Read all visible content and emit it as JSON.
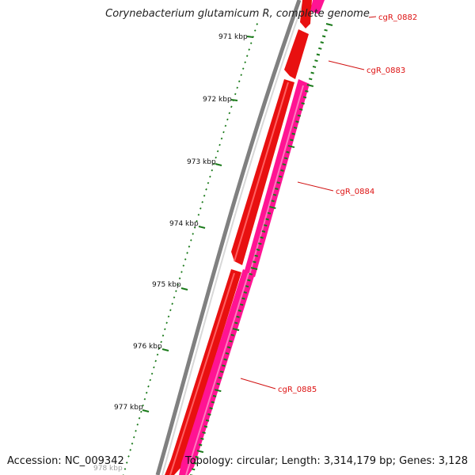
{
  "title": "Corynebacterium glutamicum R, complete genome",
  "accession": "Accession: NC_009342",
  "topology": "Topology: circular; Length: 3,314,179 bp; Genes: 3,128",
  "ticks": [
    "971 kbp",
    "972 kbp",
    "973 kbp",
    "974 kbp",
    "975 kbp",
    "976 kbp",
    "977 kbp",
    "978 kbp"
  ],
  "genes": [
    {
      "id": "cgR_0882",
      "strand": "forward",
      "color": "#e81010"
    },
    {
      "id": "cgR_0883",
      "strand": "forward",
      "color": "#e81010"
    },
    {
      "id": "cgR_0884",
      "strand": "reverse",
      "color": "#ff1493"
    },
    {
      "id": "cgR_0885",
      "strand": "reverse",
      "color": "#ff1493"
    }
  ],
  "colors": {
    "backbone": "#808080",
    "tick": "#1a7a1a",
    "label": "#d11111"
  }
}
